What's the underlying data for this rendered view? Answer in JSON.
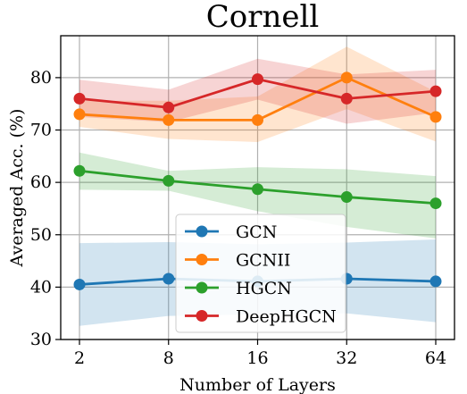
{
  "chart_data": {
    "type": "line",
    "title": "Cornell",
    "xlabel": "Number of Layers",
    "ylabel": "Averaged Acc. (%)",
    "categories": [
      "2",
      "8",
      "16",
      "32",
      "64"
    ],
    "ylim": [
      30,
      88
    ],
    "yticks": [
      30,
      40,
      50,
      60,
      70,
      80
    ],
    "grid": true,
    "legend_position": "lower-center",
    "series": [
      {
        "name": "GCN",
        "color": "#1f77b4",
        "values": [
          40.5,
          41.6,
          41.1,
          41.6,
          41.1
        ],
        "lower": [
          32.6,
          34.5,
          34.8,
          35.0,
          33.3
        ],
        "upper": [
          48.4,
          48.6,
          48.2,
          48.5,
          49.1
        ]
      },
      {
        "name": "GCNII",
        "color": "#ff7f0e",
        "values": [
          73.0,
          71.9,
          71.9,
          80.0,
          72.5
        ],
        "lower": [
          70.6,
          68.3,
          67.7,
          74.0,
          67.8
        ],
        "upper": [
          75.6,
          75.6,
          76.4,
          85.9,
          77.3
        ]
      },
      {
        "name": "HGCN",
        "color": "#2ca02c",
        "values": [
          62.2,
          60.3,
          58.7,
          57.2,
          56.0
        ],
        "lower": [
          58.6,
          58.4,
          54.5,
          51.5,
          49.3
        ],
        "upper": [
          65.7,
          62.2,
          62.9,
          62.5,
          61.2
        ]
      },
      {
        "name": "DeepHGCN",
        "color": "#d62728",
        "values": [
          76.0,
          74.3,
          79.7,
          76.0,
          77.4
        ],
        "lower": [
          72.5,
          71.5,
          75.8,
          71.2,
          73.3
        ],
        "upper": [
          79.6,
          77.7,
          83.6,
          80.6,
          81.5
        ]
      }
    ]
  }
}
